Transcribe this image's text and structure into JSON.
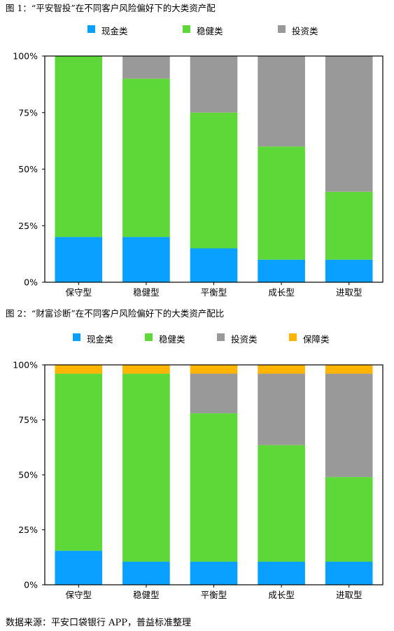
{
  "captions": {
    "figure1": "图 1：“平安智投”在不同客户风险偏好下的大类资产配",
    "figure2": "图 2：“财富诊断”在不同客户风险偏好下的大类资产配比"
  },
  "footer": "数据来源：平安口袋银行 APP，普益标准整理",
  "chart_data": [
    {
      "type": "bar",
      "stacked": true,
      "title": "图 1：“平安智投”在不同客户风险偏好下的大类资产配",
      "categories": [
        "保守型",
        "稳健型",
        "平衡型",
        "成长型",
        "进取型"
      ],
      "series": [
        {
          "name": "现金类",
          "color": "#0aa0ff",
          "values": [
            20,
            20,
            15,
            10,
            10
          ]
        },
        {
          "name": "稳健类",
          "color": "#5ed838",
          "values": [
            80,
            70,
            60,
            50,
            30
          ]
        },
        {
          "name": "投资类",
          "color": "#999999",
          "values": [
            0,
            10,
            25,
            40,
            60
          ]
        }
      ],
      "yticks": [
        "0%",
        "25%",
        "50%",
        "75%",
        "100%"
      ],
      "ylim": [
        0,
        100
      ],
      "grid": false,
      "legend": "top-center"
    },
    {
      "type": "bar",
      "stacked": true,
      "title": "图 2：“财富诊断”在不同客户风险偏好下的大类资产配比",
      "categories": [
        "保守型",
        "稳健型",
        "平衡型",
        "成长型",
        "进取型"
      ],
      "series": [
        {
          "name": "现金类",
          "color": "#0aa0ff",
          "values": [
            15.5,
            10.5,
            10.5,
            10.5,
            10.5
          ]
        },
        {
          "name": "稳健类",
          "color": "#5ed838",
          "values": [
            80.5,
            85.5,
            67.5,
            53,
            38.5
          ]
        },
        {
          "name": "投资类",
          "color": "#999999",
          "values": [
            0,
            0,
            18,
            32.5,
            47
          ]
        },
        {
          "name": "保障类",
          "color": "#ffb400",
          "values": [
            4,
            4,
            4,
            4,
            4
          ]
        }
      ],
      "yticks": [
        "0%",
        "25%",
        "50%",
        "75%",
        "100%"
      ],
      "ylim": [
        0,
        100
      ],
      "grid": false,
      "legend": "top-center"
    }
  ]
}
